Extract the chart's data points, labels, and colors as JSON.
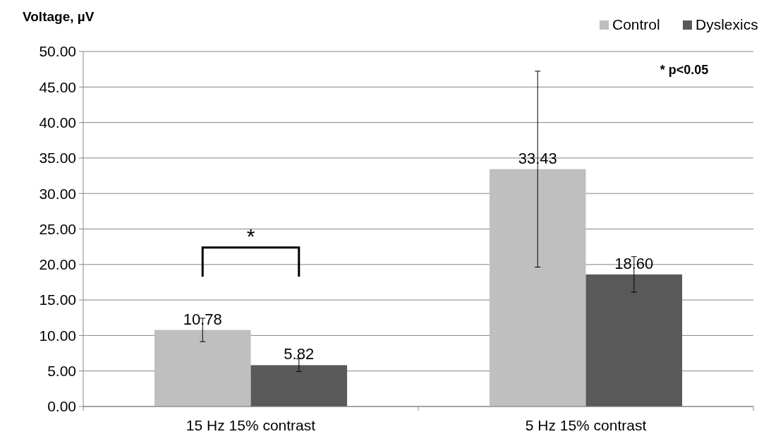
{
  "chart_data": {
    "type": "bar",
    "ylabel": "Voltage, µV",
    "categories": [
      "15 Hz 15% contrast",
      "5 Hz 15% contrast"
    ],
    "series": [
      {
        "name": "Control",
        "color": "#bfbfbf",
        "values": [
          10.78,
          33.43
        ],
        "value_labels": [
          "10.78",
          "33.43"
        ],
        "errors": [
          1.65,
          13.8
        ]
      },
      {
        "name": "Dyslexics",
        "color": "#595959",
        "values": [
          5.82,
          18.6
        ],
        "value_labels": [
          "5.82",
          "18.60"
        ],
        "errors": [
          0.9,
          2.5
        ]
      }
    ],
    "ylim": [
      0,
      50
    ],
    "yticks": [
      {
        "value": 0,
        "label": "0.00"
      },
      {
        "value": 5,
        "label": "5.00"
      },
      {
        "value": 10,
        "label": "10.00"
      },
      {
        "value": 15,
        "label": "15.00"
      },
      {
        "value": 20,
        "label": "20.00"
      },
      {
        "value": 25,
        "label": "25.00"
      },
      {
        "value": 30,
        "label": "30.00"
      },
      {
        "value": 35,
        "label": "35.00"
      },
      {
        "value": 40,
        "label": "40.00"
      },
      {
        "value": 45,
        "label": "45.00"
      },
      {
        "value": 50,
        "label": "50.00"
      }
    ],
    "grid": "y",
    "legend": "top right",
    "annotations": [
      "*",
      "* p<0.05"
    ]
  }
}
